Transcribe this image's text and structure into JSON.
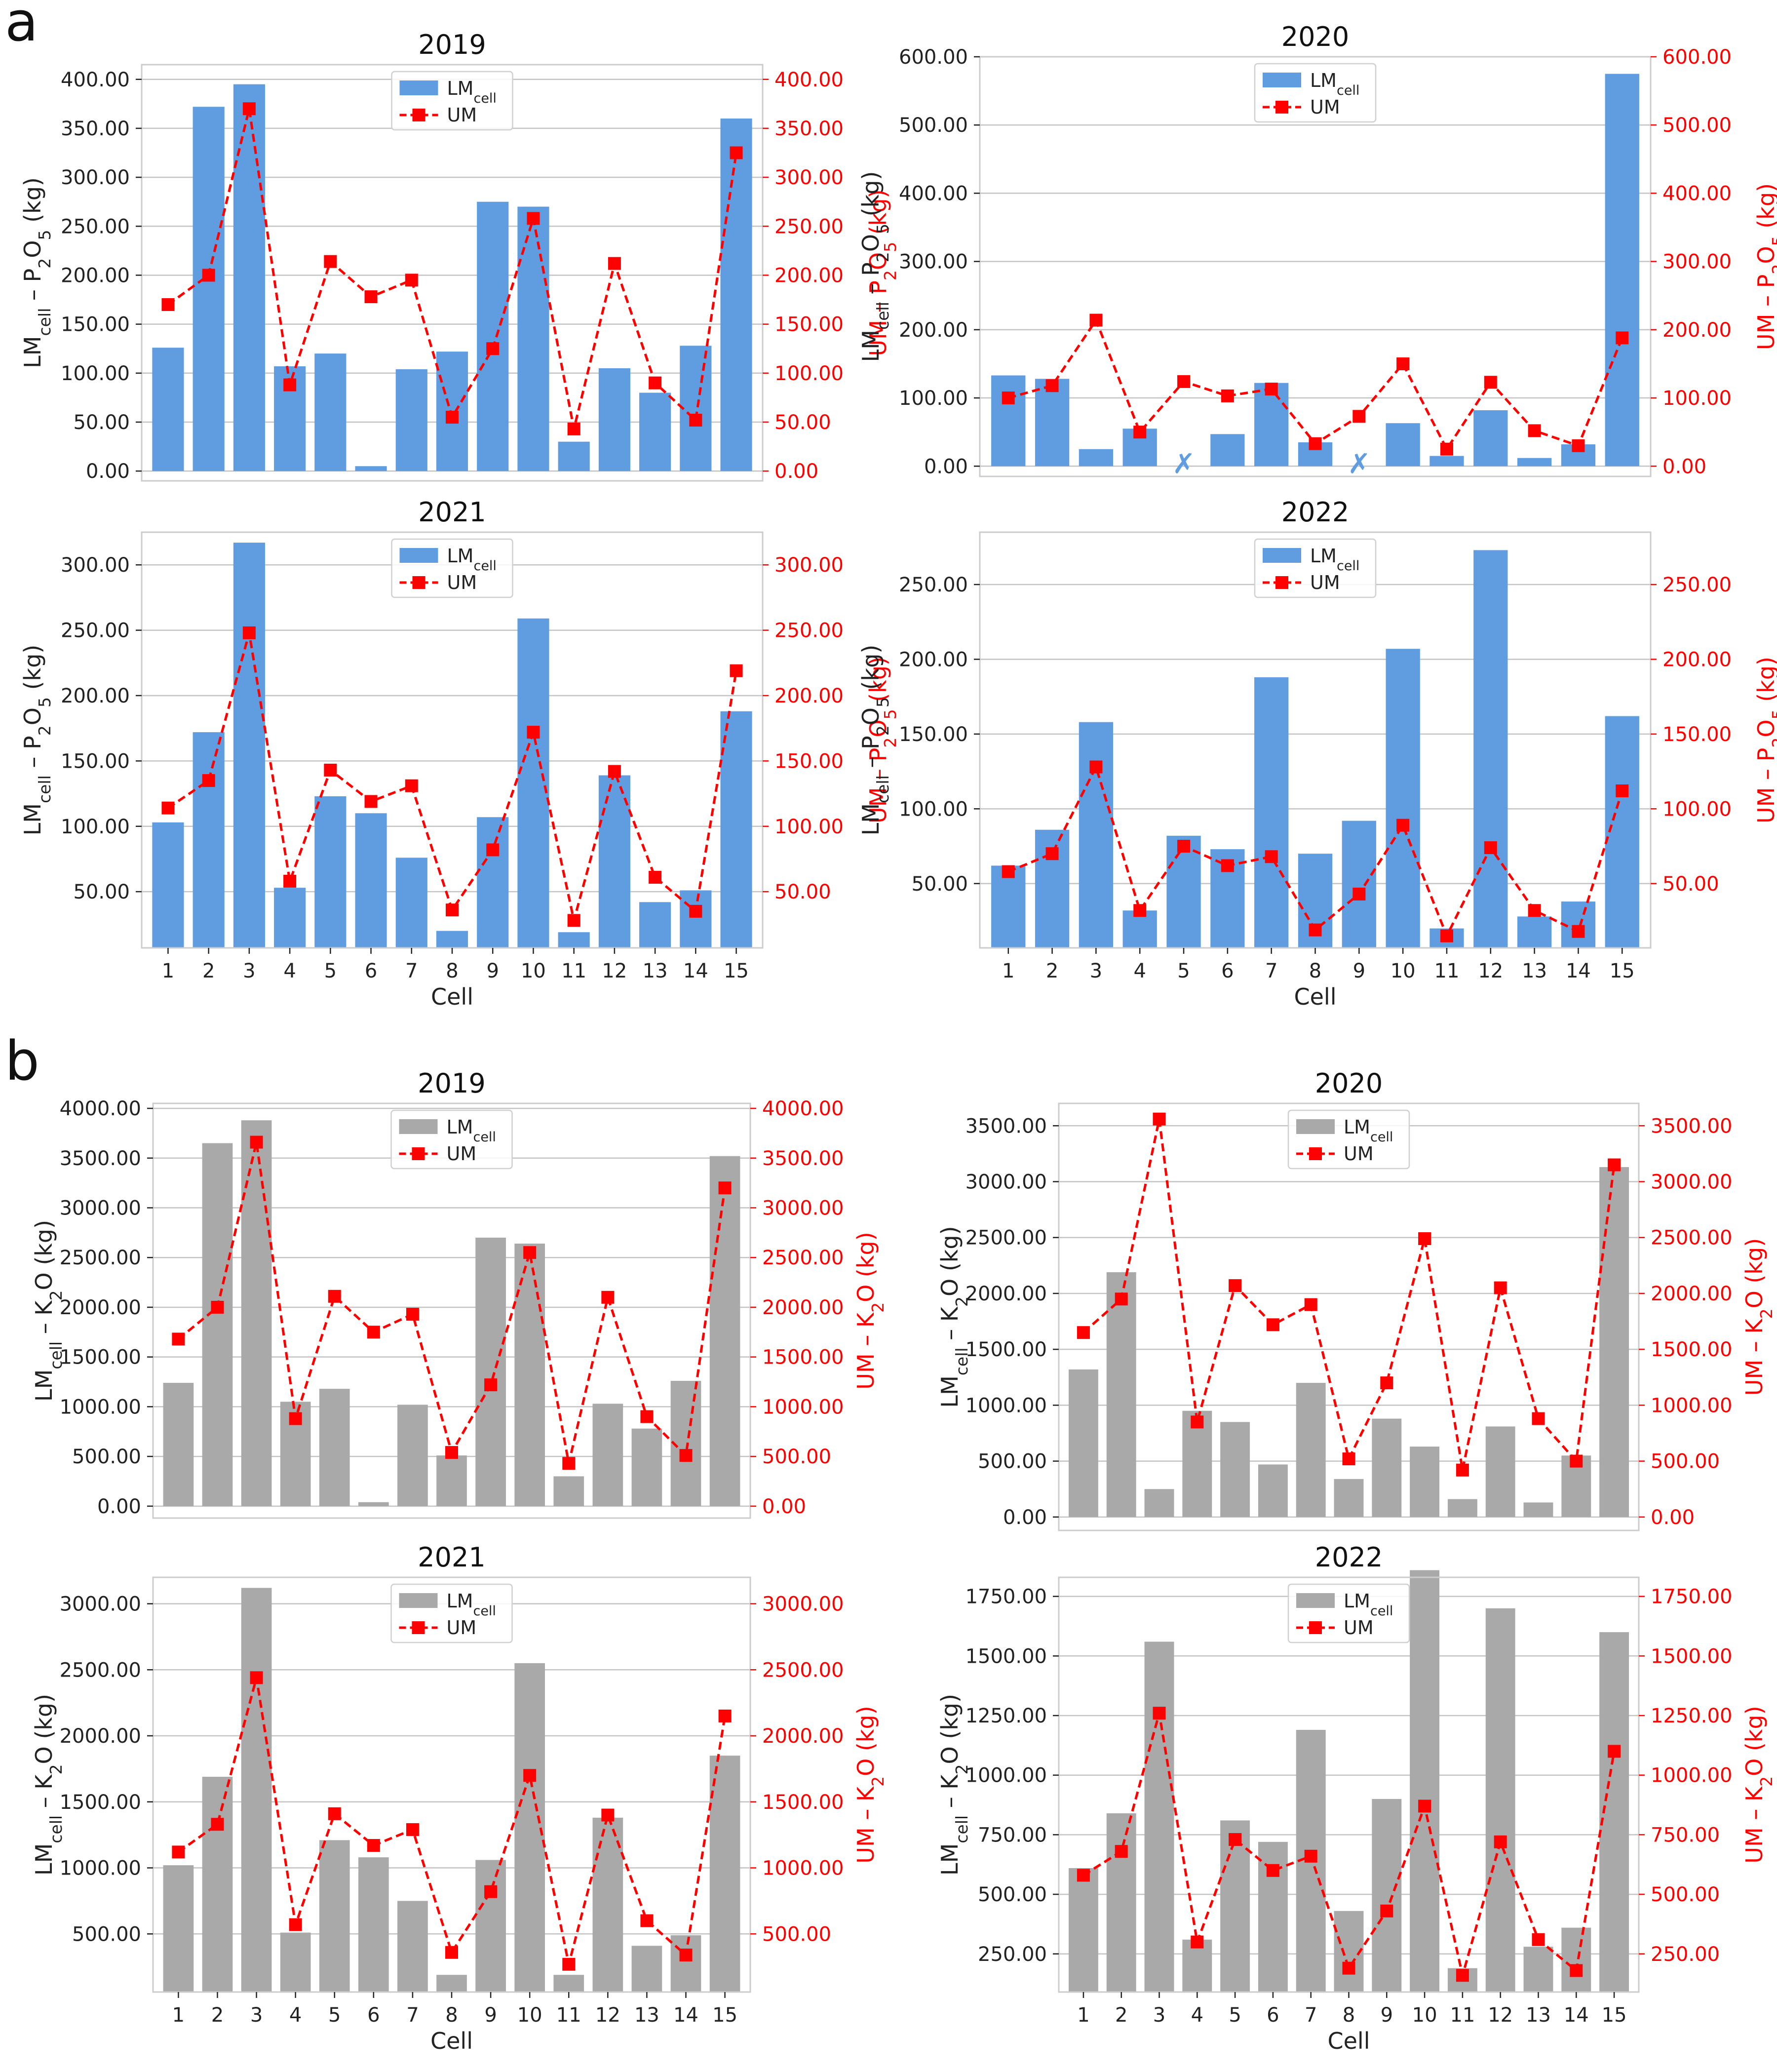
{
  "figure": {
    "panel_labels": [
      "a",
      "b"
    ],
    "colors": {
      "bar_p": "#5f9de0",
      "bar_k": "#a9a9a9",
      "um": "#ff0000",
      "grid": "#c4c4c4",
      "frame": "#cccccc",
      "text": "#222222"
    }
  },
  "chart_data": [
    {
      "type": "bar+line",
      "panel": "a",
      "title": "2019",
      "nutrient": "P",
      "categories": [
        "1",
        "2",
        "3",
        "4",
        "5",
        "6",
        "7",
        "8",
        "9",
        "10",
        "11",
        "12",
        "13",
        "14",
        "15"
      ],
      "series": [
        {
          "name": "LMcell",
          "type": "bar",
          "axis": "left",
          "values": [
            126,
            372,
            395,
            107,
            120,
            5,
            104,
            122,
            275,
            270,
            30,
            105,
            80,
            128,
            360
          ]
        },
        {
          "name": "UM",
          "type": "line",
          "axis": "right",
          "values": [
            170,
            200,
            370,
            88,
            214,
            178,
            195,
            55,
            125,
            258,
            43,
            212,
            90,
            52,
            325
          ]
        }
      ],
      "ylabel_left": "LMcell – P2O5 (kg)",
      "ylabel_right": "UM – P2O5 (kg)",
      "xlabel": "",
      "ylim": [
        -10,
        415
      ],
      "yticks": [
        0,
        50,
        100,
        150,
        200,
        250,
        300,
        350,
        400
      ],
      "yticklabels": [
        "0.00",
        "50.00",
        "100.00",
        "150.00",
        "200.00",
        "250.00",
        "300.00",
        "350.00",
        "400.00"
      ]
    },
    {
      "type": "bar+line",
      "panel": "a",
      "title": "2020",
      "nutrient": "P",
      "categories": [
        "1",
        "2",
        "3",
        "4",
        "5",
        "6",
        "7",
        "8",
        "9",
        "10",
        "11",
        "12",
        "13",
        "14",
        "15"
      ],
      "series": [
        {
          "name": "LMcell",
          "type": "bar",
          "axis": "left",
          "values": [
            133,
            128,
            25,
            55,
            null,
            47,
            122,
            35,
            null,
            63,
            15,
            82,
            12,
            32,
            575
          ]
        },
        {
          "name": "UM",
          "type": "line",
          "axis": "right",
          "values": [
            100,
            118,
            214,
            50,
            124,
            103,
            113,
            33,
            73,
            150,
            25,
            123,
            52,
            30,
            188
          ]
        }
      ],
      "missing_marker": "✗",
      "ylabel_left": "LMcell – P2O5 (kg)",
      "ylabel_right": "UM – P2O5 (kg)",
      "xlabel": "",
      "ylim": [
        -15,
        600
      ],
      "yticks": [
        0,
        100,
        200,
        300,
        400,
        500,
        600
      ],
      "yticklabels": [
        "0.00",
        "100.00",
        "200.00",
        "300.00",
        "400.00",
        "500.00",
        "600.00"
      ]
    },
    {
      "type": "bar+line",
      "panel": "a",
      "title": "2021",
      "nutrient": "P",
      "categories": [
        "1",
        "2",
        "3",
        "4",
        "5",
        "6",
        "7",
        "8",
        "9",
        "10",
        "11",
        "12",
        "13",
        "14",
        "15"
      ],
      "series": [
        {
          "name": "LMcell",
          "type": "bar",
          "axis": "left",
          "values": [
            103,
            172,
            317,
            53,
            123,
            110,
            76,
            20,
            107,
            259,
            19,
            139,
            42,
            51,
            188
          ]
        },
        {
          "name": "UM",
          "type": "line",
          "axis": "right",
          "values": [
            114,
            135,
            248,
            58,
            143,
            119,
            131,
            36,
            82,
            172,
            28,
            142,
            61,
            35,
            219
          ]
        }
      ],
      "ylabel_left": "LMcell – P2O5 (kg)",
      "ylabel_right": "UM – P2O5 (kg)",
      "xlabel": "Cell",
      "ylim": [
        7,
        325
      ],
      "yticks": [
        50,
        100,
        150,
        200,
        250,
        300
      ],
      "yticklabels": [
        "50.00",
        "100.00",
        "150.00",
        "200.00",
        "250.00",
        "300.00"
      ]
    },
    {
      "type": "bar+line",
      "panel": "a",
      "title": "2022",
      "nutrient": "P",
      "categories": [
        "1",
        "2",
        "3",
        "4",
        "5",
        "6",
        "7",
        "8",
        "9",
        "10",
        "11",
        "12",
        "13",
        "14",
        "15"
      ],
      "series": [
        {
          "name": "LMcell",
          "type": "bar",
          "axis": "left",
          "values": [
            62,
            86,
            158,
            32,
            82,
            73,
            188,
            70,
            92,
            207,
            20,
            273,
            28,
            38,
            162
          ]
        },
        {
          "name": "UM",
          "type": "line",
          "axis": "right",
          "values": [
            58,
            70,
            128,
            32,
            75,
            62,
            68,
            19,
            43,
            89,
            15,
            74,
            32,
            18,
            112
          ]
        }
      ],
      "ylabel_left": "LMcell – P2O5 (kg)",
      "ylabel_right": "UM – P2O5 (kg)",
      "xlabel": "Cell",
      "ylim": [
        7,
        285
      ],
      "yticks": [
        50,
        100,
        150,
        200,
        250
      ],
      "yticklabels": [
        "50.00",
        "100.00",
        "150.00",
        "200.00",
        "250.00"
      ]
    },
    {
      "type": "bar+line",
      "panel": "b",
      "title": "2019",
      "nutrient": "K",
      "categories": [
        "1",
        "2",
        "3",
        "4",
        "5",
        "6",
        "7",
        "8",
        "9",
        "10",
        "11",
        "12",
        "13",
        "14",
        "15"
      ],
      "series": [
        {
          "name": "LMcell",
          "type": "bar",
          "axis": "left",
          "values": [
            1240,
            3650,
            3880,
            1050,
            1180,
            40,
            1020,
            510,
            2700,
            2640,
            300,
            1030,
            780,
            1260,
            3520
          ]
        },
        {
          "name": "UM",
          "type": "line",
          "axis": "right",
          "values": [
            1680,
            2000,
            3660,
            880,
            2110,
            1750,
            1930,
            540,
            1220,
            2550,
            430,
            2100,
            900,
            510,
            3200
          ]
        }
      ],
      "ylabel_left": "LMcell – K2O (kg)",
      "ylabel_right": "UM – K2O (kg)",
      "xlabel": "",
      "ylim": [
        -120,
        4050
      ],
      "yticks": [
        0,
        500,
        1000,
        1500,
        2000,
        2500,
        3000,
        3500,
        4000
      ],
      "yticklabels": [
        "0.00",
        "500.00",
        "1000.00",
        "1500.00",
        "2000.00",
        "2500.00",
        "3000.00",
        "3500.00",
        "4000.00"
      ]
    },
    {
      "type": "bar+line",
      "panel": "b",
      "title": "2020",
      "nutrient": "K",
      "categories": [
        "1",
        "2",
        "3",
        "4",
        "5",
        "6",
        "7",
        "8",
        "9",
        "10",
        "11",
        "12",
        "13",
        "14",
        "15"
      ],
      "series": [
        {
          "name": "LMcell",
          "type": "bar",
          "axis": "left",
          "values": [
            1320,
            2190,
            250,
            950,
            850,
            470,
            1200,
            340,
            880,
            630,
            160,
            810,
            130,
            550,
            3130
          ]
        },
        {
          "name": "UM",
          "type": "line",
          "axis": "right",
          "values": [
            1650,
            1950,
            3560,
            850,
            2070,
            1720,
            1900,
            520,
            1200,
            2490,
            420,
            2050,
            880,
            500,
            3150
          ]
        }
      ],
      "ylabel_left": "LMcell – K2O (kg)",
      "ylabel_right": "UM – K2O (kg)",
      "xlabel": "",
      "ylim": [
        -120,
        3700
      ],
      "yticks": [
        0,
        500,
        1000,
        1500,
        2000,
        2500,
        3000,
        3500
      ],
      "yticklabels": [
        "0.00",
        "500.00",
        "1000.00",
        "1500.00",
        "2000.00",
        "2500.00",
        "3000.00",
        "3500.00"
      ]
    },
    {
      "type": "bar+line",
      "panel": "b",
      "title": "2021",
      "nutrient": "K",
      "categories": [
        "1",
        "2",
        "3",
        "4",
        "5",
        "6",
        "7",
        "8",
        "9",
        "10",
        "11",
        "12",
        "13",
        "14",
        "15"
      ],
      "series": [
        {
          "name": "LMcell",
          "type": "bar",
          "axis": "left",
          "values": [
            1020,
            1690,
            3120,
            510,
            1210,
            1080,
            750,
            190,
            1060,
            2550,
            190,
            1380,
            410,
            490,
            1850
          ]
        },
        {
          "name": "UM",
          "type": "line",
          "axis": "right",
          "values": [
            1120,
            1330,
            2440,
            570,
            1410,
            1170,
            1290,
            360,
            820,
            1700,
            270,
            1400,
            600,
            340,
            2150
          ]
        }
      ],
      "ylabel_left": "LMcell – K2O (kg)",
      "ylabel_right": "UM – K2O (kg)",
      "xlabel": "Cell",
      "ylim": [
        60,
        3200
      ],
      "yticks": [
        500,
        1000,
        1500,
        2000,
        2500,
        3000
      ],
      "yticklabels": [
        "500.00",
        "1000.00",
        "1500.00",
        "2000.00",
        "2500.00",
        "3000.00"
      ]
    },
    {
      "type": "bar+line",
      "panel": "b",
      "title": "2022",
      "nutrient": "K",
      "categories": [
        "1",
        "2",
        "3",
        "4",
        "5",
        "6",
        "7",
        "8",
        "9",
        "10",
        "11",
        "12",
        "13",
        "14",
        "15"
      ],
      "series": [
        {
          "name": "LMcell",
          "type": "bar",
          "axis": "left",
          "values": [
            610,
            840,
            1560,
            310,
            810,
            720,
            1190,
            430,
            900,
            1860,
            190,
            1700,
            280,
            360,
            1600
          ]
        },
        {
          "name": "UM",
          "type": "line",
          "axis": "right",
          "values": [
            580,
            680,
            1260,
            300,
            730,
            600,
            660,
            190,
            430,
            870,
            160,
            720,
            310,
            180,
            1100
          ]
        }
      ],
      "ylabel_left": "LMcell – K2O (kg)",
      "ylabel_right": "UM – K2O (kg)",
      "xlabel": "Cell",
      "ylim": [
        90,
        1830
      ],
      "yticks": [
        250,
        500,
        750,
        1000,
        1250,
        1500,
        1750
      ],
      "yticklabels": [
        "250.00",
        "500.00",
        "750.00",
        "1000.00",
        "1250.00",
        "1500.00",
        "1750.00"
      ]
    }
  ]
}
